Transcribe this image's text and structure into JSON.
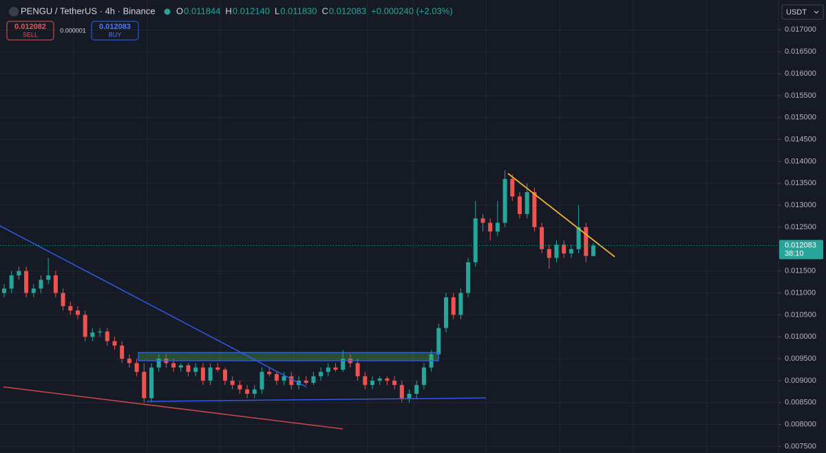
{
  "header": {
    "symbol": "PENGU / TetherUS · 4h · Binance",
    "ohlc": [
      {
        "key": "O",
        "value": "0.011844"
      },
      {
        "key": "H",
        "value": "0.012140"
      },
      {
        "key": "L",
        "value": "0.011830"
      },
      {
        "key": "C",
        "value": "0.012083"
      }
    ],
    "change": "+0.000240 (+2.03%)"
  },
  "trade": {
    "sell_price": "0.012082",
    "sell_label": "SELL",
    "spread": "0.000001",
    "buy_price": "0.012083",
    "buy_label": "BUY"
  },
  "currency": "USDT",
  "chart_data": {
    "type": "candlestick",
    "open": [
      0.011,
      0.0111,
      0.0114,
      0.0115,
      0.011,
      0.0111,
      0.0113,
      0.0114,
      0.011,
      0.0107,
      0.0106,
      0.0105,
      0.01,
      0.0101,
      0.01012,
      0.0099,
      0.0098,
      0.0095,
      0.0094,
      0.0092,
      0.0086,
      0.0093,
      0.0095,
      0.0094,
      0.0093,
      0.00935,
      0.0092,
      0.0093,
      0.009,
      0.0093,
      0.00925,
      0.009,
      0.0089,
      0.0088,
      0.0087,
      0.0088,
      0.0092,
      0.00915,
      0.009,
      0.0091,
      0.0089,
      0.009,
      0.00895,
      0.0091,
      0.0092,
      0.0093,
      0.00925,
      0.0095,
      0.0094,
      0.0091,
      0.0089,
      0.009,
      0.00905,
      0.009,
      0.0089,
      0.0086,
      0.0087,
      0.0089,
      0.0093,
      0.0096,
      0.0102,
      0.0109,
      0.0105,
      0.011,
      0.0117,
      0.0127,
      0.0126,
      0.0124,
      0.0126,
      0.0136,
      0.0132,
      0.0128,
      0.0133,
      0.0125,
      0.012,
      0.0118,
      0.0121,
      0.0119,
      0.012,
      0.0125,
      0.011844
    ],
    "high": [
      0.0112,
      0.0115,
      0.0116,
      0.0116,
      0.0112,
      0.0114,
      0.0118,
      0.0115,
      0.0111,
      0.0108,
      0.0107,
      0.0106,
      0.0102,
      0.0102,
      0.0102,
      0.01,
      0.0099,
      0.0096,
      0.0095,
      0.0094,
      0.0094,
      0.0096,
      0.0096,
      0.0095,
      0.0094,
      0.0094,
      0.0094,
      0.0094,
      0.0094,
      0.0094,
      0.0093,
      0.0091,
      0.009,
      0.0089,
      0.0089,
      0.0093,
      0.0093,
      0.0092,
      0.0092,
      0.0092,
      0.0091,
      0.0091,
      0.0092,
      0.0093,
      0.0094,
      0.0094,
      0.0097,
      0.0096,
      0.0095,
      0.0092,
      0.0091,
      0.0091,
      0.0091,
      0.0091,
      0.009,
      0.0088,
      0.009,
      0.0094,
      0.0097,
      0.0103,
      0.011,
      0.011,
      0.0111,
      0.0118,
      0.0131,
      0.0128,
      0.0127,
      0.0131,
      0.0138,
      0.0137,
      0.0133,
      0.0135,
      0.0134,
      0.0126,
      0.0121,
      0.0122,
      0.0122,
      0.0121,
      0.013,
      0.0126,
      0.01214
    ],
    "low": [
      0.0109,
      0.011,
      0.0113,
      0.0109,
      0.0109,
      0.011,
      0.0112,
      0.0109,
      0.0106,
      0.0105,
      0.0104,
      0.0099,
      0.0099,
      0.01,
      0.0098,
      0.0097,
      0.0094,
      0.0093,
      0.0091,
      0.0085,
      0.0085,
      0.0092,
      0.0093,
      0.0092,
      0.0092,
      0.0091,
      0.0091,
      0.0089,
      0.0089,
      0.0092,
      0.0089,
      0.0088,
      0.0087,
      0.0086,
      0.0086,
      0.0087,
      0.0091,
      0.0089,
      0.0089,
      0.0088,
      0.0088,
      0.0089,
      0.0089,
      0.009,
      0.0091,
      0.0092,
      0.0092,
      0.0093,
      0.009,
      0.0088,
      0.0088,
      0.0089,
      0.0089,
      0.0088,
      0.0085,
      0.0085,
      0.0086,
      0.0088,
      0.0092,
      0.0095,
      0.0101,
      0.0104,
      0.0104,
      0.0109,
      0.0116,
      0.0124,
      0.0122,
      0.0123,
      0.0125,
      0.0131,
      0.0127,
      0.0127,
      0.0124,
      0.0119,
      0.01155,
      0.0117,
      0.0118,
      0.0118,
      0.0119,
      0.0117,
      0.01183
    ],
    "close": [
      0.0111,
      0.0114,
      0.0115,
      0.011,
      0.0111,
      0.0113,
      0.0114,
      0.011,
      0.0107,
      0.0106,
      0.0105,
      0.01,
      0.0101,
      0.01012,
      0.0099,
      0.0098,
      0.0095,
      0.0094,
      0.0092,
      0.0086,
      0.0093,
      0.0095,
      0.0094,
      0.0093,
      0.00935,
      0.0092,
      0.0093,
      0.009,
      0.0093,
      0.00925,
      0.009,
      0.0089,
      0.0088,
      0.0087,
      0.0088,
      0.0092,
      0.00915,
      0.009,
      0.0091,
      0.0089,
      0.009,
      0.00895,
      0.0091,
      0.0092,
      0.0093,
      0.00925,
      0.0095,
      0.0094,
      0.0091,
      0.0089,
      0.009,
      0.00905,
      0.009,
      0.0089,
      0.0086,
      0.0087,
      0.0089,
      0.0093,
      0.0096,
      0.0102,
      0.0109,
      0.0105,
      0.011,
      0.0117,
      0.0127,
      0.0126,
      0.0124,
      0.0126,
      0.0136,
      0.0132,
      0.0128,
      0.0133,
      0.0125,
      0.012,
      0.0118,
      0.0121,
      0.0119,
      0.012,
      0.0125,
      0.011844,
      0.012083
    ],
    "ylim": [
      0.00735,
      0.01768
    ],
    "yticks": [
      {
        "value": 0.017,
        "label": "0.017000"
      },
      {
        "value": 0.0165,
        "label": "0.016500"
      },
      {
        "value": 0.016,
        "label": "0.016000"
      },
      {
        "value": 0.0155,
        "label": "0.015500"
      },
      {
        "value": 0.015,
        "label": "0.015000"
      },
      {
        "value": 0.0145,
        "label": "0.014500"
      },
      {
        "value": 0.014,
        "label": "0.014000"
      },
      {
        "value": 0.0135,
        "label": "0.013500"
      },
      {
        "value": 0.013,
        "label": "0.013000"
      },
      {
        "value": 0.0125,
        "label": "0.012500"
      },
      {
        "value": 0.0115,
        "label": "0.011500"
      },
      {
        "value": 0.011,
        "label": "0.011000"
      },
      {
        "value": 0.0105,
        "label": "0.010500"
      },
      {
        "value": 0.01,
        "label": "0.010000"
      },
      {
        "value": 0.0095,
        "label": "0.009500"
      },
      {
        "value": 0.009,
        "label": "0.009000"
      },
      {
        "value": 0.0085,
        "label": "0.008500"
      },
      {
        "value": 0.008,
        "label": "0.008000"
      },
      {
        "value": 0.0075,
        "label": "0.007500"
      }
    ],
    "last_price": {
      "value": 0.012083,
      "label": "0.012083"
    },
    "countdown": "38:10",
    "grid": true,
    "colors": {
      "up": "#26a69a",
      "down": "#ef5350"
    }
  }
}
